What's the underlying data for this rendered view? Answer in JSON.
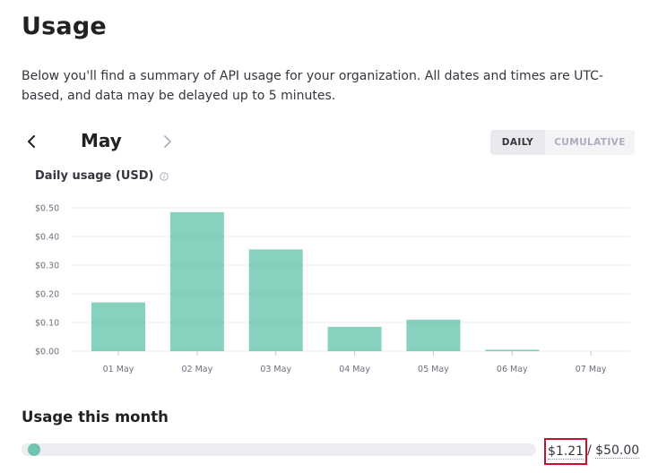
{
  "page": {
    "title": "Usage",
    "description": "Below you'll find a summary of API usage for your organization. All dates and times are UTC-based, and data may be delayed up to 5 minutes."
  },
  "month_nav": {
    "month": "May",
    "prev_icon": "chevron-left-icon",
    "next_icon": "chevron-right-icon"
  },
  "view_toggle": {
    "daily_label": "DAILY",
    "cumulative_label": "CUMULATIVE",
    "selected": "DAILY"
  },
  "chart": {
    "title": "Daily usage (USD)",
    "info_icon": "info-icon"
  },
  "chart_data": {
    "type": "bar",
    "title": "Daily usage (USD)",
    "xlabel": "",
    "ylabel": "",
    "categories": [
      "01 May",
      "02 May",
      "03 May",
      "04 May",
      "05 May",
      "06 May",
      "07 May"
    ],
    "values": [
      0.17,
      0.485,
      0.355,
      0.085,
      0.11,
      0.005,
      0
    ],
    "ylim": [
      0,
      0.5
    ],
    "yticks": [
      "$0.00",
      "$0.10",
      "$0.20",
      "$0.30",
      "$0.40",
      "$0.50"
    ],
    "grid": true,
    "bar_color": "#10a37f"
  },
  "usage_month": {
    "title": "Usage this month",
    "current": "$1.21",
    "separator": "/",
    "limit": "$50.00",
    "progress_fraction": 0.0242,
    "accent_color": "#10a37f"
  }
}
